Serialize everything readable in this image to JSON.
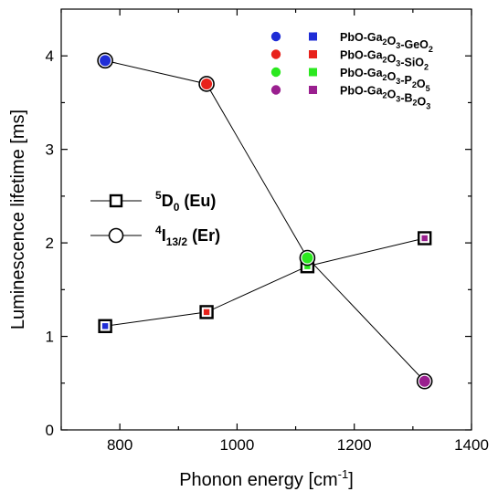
{
  "chart_data": {
    "type": "line",
    "xlabel": {
      "main": "Phonon energy [cm",
      "sup": "-1",
      "end": "]"
    },
    "ylabel": "Luminescence lifetime [ms]",
    "xlim": [
      700,
      1400
    ],
    "ylim": [
      0,
      4.5
    ],
    "xticks": [
      800,
      1000,
      1200,
      1400
    ],
    "yticks": [
      0,
      1,
      2,
      3,
      4
    ],
    "glasses": [
      {
        "color": "#1f2dd6",
        "segments": [
          {
            "t": "PbO-Ga"
          },
          {
            "t": "2",
            "sub": true
          },
          {
            "t": "O"
          },
          {
            "t": "3",
            "sub": true
          },
          {
            "t": "-GeO"
          },
          {
            "t": "2",
            "sub": true
          }
        ]
      },
      {
        "color": "#e8221b",
        "segments": [
          {
            "t": "PbO-Ga"
          },
          {
            "t": "2",
            "sub": true
          },
          {
            "t": "O"
          },
          {
            "t": "3",
            "sub": true
          },
          {
            "t": "-SiO"
          },
          {
            "t": "2",
            "sub": true
          }
        ]
      },
      {
        "color": "#2be81f",
        "segments": [
          {
            "t": "PbO-Ga"
          },
          {
            "t": "2",
            "sub": true
          },
          {
            "t": "O"
          },
          {
            "t": "3",
            "sub": true
          },
          {
            "t": "-P"
          },
          {
            "t": "2",
            "sub": true
          },
          {
            "t": "O"
          },
          {
            "t": "5",
            "sub": true
          }
        ]
      },
      {
        "color": "#9a1f8f",
        "segments": [
          {
            "t": "PbO-Ga"
          },
          {
            "t": "2",
            "sub": true
          },
          {
            "t": "O"
          },
          {
            "t": "3",
            "sub": true
          },
          {
            "t": "-B"
          },
          {
            "t": "2",
            "sub": true
          },
          {
            "t": "O"
          },
          {
            "t": "3",
            "sub": true
          }
        ]
      }
    ],
    "series": [
      {
        "key": "eu",
        "marker": "square",
        "label": {
          "sup": "5",
          "main": "D",
          "sub": "0",
          "end": " (Eu)"
        },
        "x": [
          775,
          948,
          1120,
          1320
        ],
        "y": [
          1.11,
          1.26,
          1.75,
          2.05
        ]
      },
      {
        "key": "er",
        "marker": "circle",
        "label": {
          "sup": "4",
          "main": "I",
          "sub": "13/2",
          "end": " (Er)"
        },
        "x": [
          775,
          948,
          1120,
          1320
        ],
        "y": [
          3.95,
          3.7,
          1.84,
          0.52
        ]
      }
    ],
    "grid": false,
    "legend": "top-right (glass compositions); center-left (ion transitions)"
  }
}
